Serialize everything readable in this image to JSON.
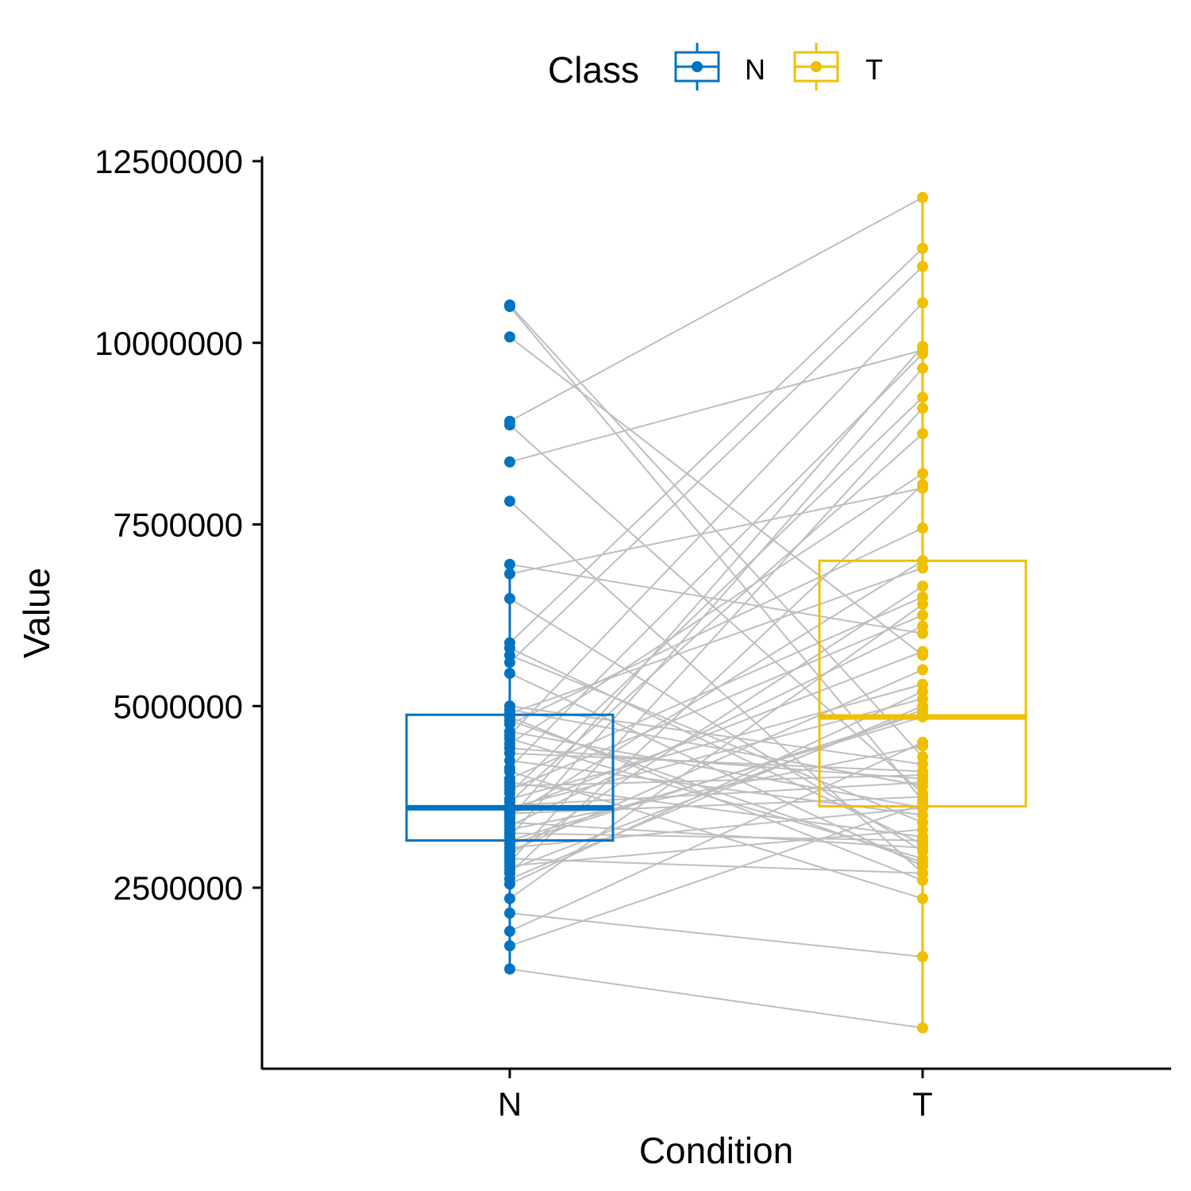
{
  "chart_data": {
    "type": "box-paired",
    "xlabel": "Condition",
    "ylabel": "Value",
    "categories": [
      "N",
      "T"
    ],
    "ylim": [
      0,
      12500000
    ],
    "yticks": [
      2500000,
      5000000,
      7500000,
      10000000,
      12500000
    ],
    "ytick_labels": [
      "2500000",
      "5000000",
      "7500000",
      "10000000",
      "12500000"
    ],
    "grid": false,
    "legend": {
      "title": "Class",
      "position": "top",
      "entries": [
        {
          "label": "N",
          "color": "#0073C2"
        },
        {
          "label": "T",
          "color": "#EFC000"
        }
      ]
    },
    "colors": {
      "N": "#0073C2",
      "T": "#EFC000",
      "line": "#BEBEBE"
    },
    "boxes": [
      {
        "name": "N",
        "q1": 3150000,
        "median": 3600000,
        "q3": 4880000,
        "whisker_low": 1380000,
        "whisker_high": 6800000
      },
      {
        "name": "T",
        "q1": 3620000,
        "median": 4850000,
        "q3": 7000000,
        "whisker_low": 570000,
        "whisker_high": 12000000
      }
    ],
    "series": [
      {
        "name": "N",
        "values": [
          10520000,
          10500000,
          10080000,
          8920000,
          8870000,
          8360000,
          7820000,
          6950000,
          6820000,
          6480000,
          5870000,
          5800000,
          5700000,
          5600000,
          5450000,
          5000000,
          4950000,
          4900000,
          4850000,
          4800000,
          4750000,
          4650000,
          4600000,
          4550000,
          4480000,
          4420000,
          4350000,
          4250000,
          4150000,
          4100000,
          4000000,
          3950000,
          3900000,
          3850000,
          3800000,
          3720000,
          3680000,
          3630000,
          3600000,
          3560000,
          3520000,
          3480000,
          3450000,
          3400000,
          3350000,
          3300000,
          3250000,
          3200000,
          3150000,
          3100000,
          3050000,
          3000000,
          2950000,
          2900000,
          2850000,
          2800000,
          2750000,
          2700000,
          2620000,
          2550000,
          2350000,
          2150000,
          1900000,
          1700000,
          1380000
        ]
      },
      {
        "name": "T",
        "values": [
          4300000,
          3700000,
          5700000,
          12000000,
          3800000,
          9900000,
          2700000,
          6000000,
          8000000,
          3000000,
          11300000,
          3100000,
          3400000,
          11050000,
          2800000,
          4200000,
          3900000,
          6900000,
          2600000,
          2850000,
          7450000,
          3600000,
          10550000,
          2900000,
          8200000,
          4000000,
          4100000,
          3500000,
          9850000,
          2350000,
          6500000,
          3200000,
          4050000,
          6250000,
          9250000,
          5300000,
          8750000,
          3950000,
          5100000,
          5750000,
          3750000,
          7000000,
          9950000,
          3050000,
          6100000,
          4450000,
          3150000,
          9650000,
          4850000,
          4900000,
          3600000,
          5500000,
          6650000,
          2700000,
          9100000,
          3300000,
          4950000,
          8050000,
          5000000,
          5200000,
          6400000,
          1550000,
          4500000,
          3650000,
          570000
        ]
      }
    ]
  }
}
